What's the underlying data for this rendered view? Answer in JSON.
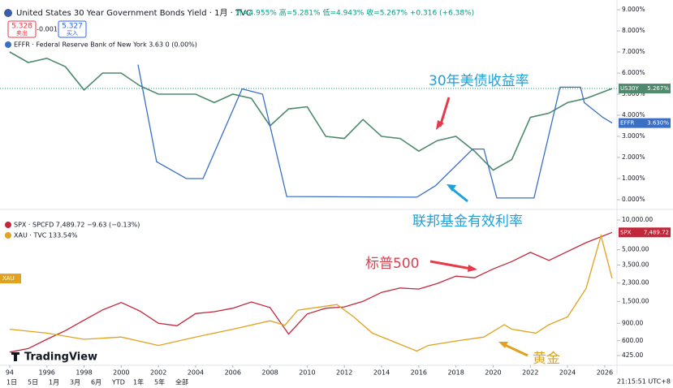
{
  "ui": {
    "symbol_title": "United States 30 Year Government Bonds Yield · 1月 · TVC",
    "ohlc": "开=4.955% 高=5.281% 低=4.943% 收=5.267% +0.316 (+6.38%)",
    "sell_price": "5.328",
    "sell_label": "卖出",
    "spread": "-0.001",
    "buy_price": "5.327",
    "buy_label": "买入",
    "logo": "TradingView",
    "timeframes": [
      "1日",
      "5日",
      "1月",
      "3月",
      "6月",
      "YTD",
      "1年",
      "5年",
      "全部"
    ],
    "clock": "21:15:51 UTC+8"
  },
  "chart_data": [
    {
      "type": "line",
      "xlim": [
        1993.48,
        2026.66
      ],
      "ylim": [
        0,
        9
      ],
      "yticks": [
        {
          "value": 0,
          "label": "0.000%"
        },
        {
          "value": 1,
          "label": "1.000%"
        },
        {
          "value": 2,
          "label": "2.000%"
        },
        {
          "value": 3,
          "label": "3.000%"
        },
        {
          "value": 4,
          "label": "4.000%"
        },
        {
          "value": 5,
          "label": "5.000%"
        },
        {
          "value": 6,
          "label": "6.000%"
        },
        {
          "value": 7,
          "label": "7.000%"
        },
        {
          "value": 8,
          "label": "8.000%"
        },
        {
          "value": 9,
          "label": "9.000%"
        }
      ],
      "series": [
        {
          "name": "US30Y",
          "price_label": "5.267%",
          "color": "#4e8a6d",
          "x": [
            1994,
            1995,
            1996,
            1997,
            1998,
            1999,
            2000,
            2001,
            2002,
            2003,
            2004,
            2005,
            2006,
            2007,
            2008,
            2009,
            2010,
            2011,
            2012,
            2013,
            2014,
            2015,
            2016,
            2017,
            2018,
            2019,
            2020,
            2021,
            2022,
            2023,
            2024,
            2025,
            2026.4
          ],
          "values": [
            7.0,
            6.5,
            6.7,
            6.3,
            5.2,
            6.0,
            6.0,
            5.4,
            5.0,
            5.0,
            5.0,
            4.6,
            5.0,
            4.8,
            3.5,
            4.3,
            4.4,
            3.0,
            2.9,
            3.8,
            3.0,
            2.9,
            2.3,
            2.8,
            3.0,
            2.3,
            1.4,
            1.9,
            3.9,
            4.1,
            4.6,
            4.8,
            5.267
          ]
        },
        {
          "name": "EFFR",
          "price_label": "3.630%",
          "legend": "EFFR · Federal Reserve Bank of New York 3.63 0 (0.00%)",
          "color": "#3a6fc4",
          "x": [
            2000.9,
            2001.9,
            2002.9,
            2003.5,
            2004.4,
            2006.5,
            2007.6,
            2008.9,
            2015.9,
            2016.9,
            2018.9,
            2019.5,
            2020.2,
            2022.2,
            2023.6,
            2024.7,
            2024.9,
            2025.9,
            2026.4
          ],
          "values": [
            6.4,
            1.8,
            1.3,
            1.0,
            1.0,
            5.25,
            5.0,
            0.15,
            0.12,
            0.66,
            2.4,
            2.4,
            0.08,
            0.08,
            5.33,
            5.33,
            4.6,
            3.9,
            3.63
          ]
        }
      ],
      "annotations": [
        {
          "text": "30年美债收益率",
          "color": "#1fa0d8"
        },
        {
          "text": "联邦基金有效利率",
          "color": "#1fa0d8"
        }
      ]
    },
    {
      "type": "line",
      "log_scale": true,
      "xlim": [
        1993.48,
        2026.66
      ],
      "xticks": [
        {
          "value": 1994,
          "label": "94"
        },
        1996,
        1998,
        2000,
        2002,
        2004,
        2006,
        2008,
        2010,
        2012,
        2014,
        2016,
        2018,
        2020,
        2022,
        2024,
        2026
      ],
      "ylim": [
        425,
        10000
      ],
      "yticks": [
        {
          "value": 425,
          "label": "425.00"
        },
        {
          "value": 600,
          "label": "600.00"
        },
        {
          "value": 900,
          "label": "900.00"
        },
        {
          "value": 1500,
          "label": "1,500.00"
        },
        {
          "value": 2300,
          "label": "2,300.00"
        },
        {
          "value": 3500,
          "label": "3,500.00"
        },
        {
          "value": 5000,
          "label": "5,000.00"
        },
        {
          "value": 10000,
          "label": "10,000.00"
        }
      ],
      "y2lim": [
        -4,
        238
      ],
      "series": [
        {
          "name": "SPX",
          "price_label": "7,489.72",
          "legend": "SPX · SPCFD 7,489.72 −9.63 (−0.13%)",
          "color": "#c2263a",
          "x": [
            1994,
            1995,
            1996,
            1997,
            1998,
            1999,
            2000,
            2001,
            2002,
            2003,
            2004,
            2005,
            2006,
            2007,
            2008,
            2009,
            2010,
            2011,
            2012,
            2013,
            2014,
            2015,
            2016,
            2017,
            2018,
            2019,
            2020,
            2021,
            2022,
            2023,
            2024,
            2025,
            2026.4
          ],
          "values": [
            460,
            500,
            620,
            760,
            970,
            1230,
            1460,
            1200,
            900,
            850,
            1130,
            1180,
            1280,
            1480,
            1300,
            700,
            1120,
            1280,
            1320,
            1500,
            1850,
            2050,
            2000,
            2280,
            2700,
            2600,
            3200,
            3800,
            4700,
            3900,
            4800,
            5900,
            7489.72
          ]
        },
        {
          "name": "XAU",
          "legend": "XAU · TVC 133.54%",
          "color": "#e0a21f",
          "axis": "y2",
          "x": [
            1994,
            1996,
            1998,
            2000,
            2002,
            2004,
            2006,
            2008,
            2008.8,
            2009.5,
            2011.6,
            2012.5,
            2013.5,
            2015.9,
            2016.5,
            2018,
            2019.5,
            2020.6,
            2021,
            2022.3,
            2023,
            2024,
            2025,
            2025.8,
            2026.4
          ],
          "values": [
            43,
            36,
            25,
            29,
            14,
            29,
            43,
            58,
            50,
            77,
            87,
            65,
            36,
            4,
            14,
            22,
            29,
            51,
            43,
            36,
            51,
            65,
            116,
            210,
            133.54
          ]
        }
      ],
      "annotations": [
        {
          "text": "标普500",
          "color": "#d9414f"
        },
        {
          "text": "黄金",
          "color": "#e0a21f"
        }
      ]
    }
  ]
}
